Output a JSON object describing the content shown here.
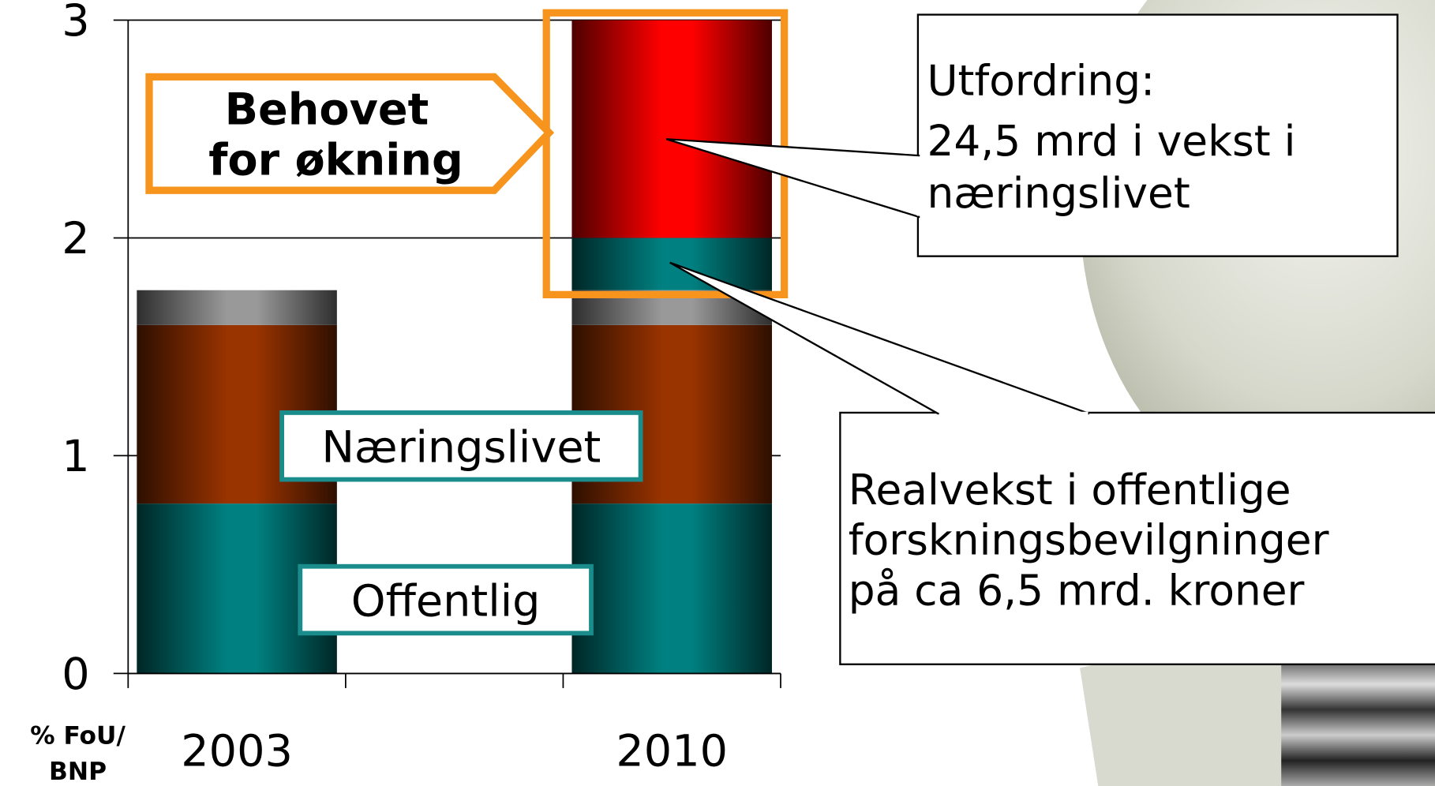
{
  "chart_data": {
    "type": "stacked_bar",
    "categories": [
      "2003",
      null,
      "2010"
    ],
    "xlabel": [
      "% FoU/",
      "BNP"
    ],
    "ylim": [
      0,
      3
    ],
    "yticks": [
      0,
      1,
      2,
      3
    ],
    "grid": true,
    "series": [
      {
        "name": "Offentlig",
        "color": "#008080",
        "values": [
          0.78,
          null,
          0.78
        ]
      },
      {
        "name": "Næringslivet",
        "color": "#993300",
        "values": [
          0.82,
          null,
          0.82
        ]
      },
      {
        "color": "#999999",
        "values": [
          0.16,
          null,
          0.16
        ]
      },
      {
        "color": "#008080",
        "values": [
          null,
          null,
          0.24
        ]
      },
      {
        "color": "#ff0000",
        "values": [
          null,
          null,
          1.0
        ]
      }
    ],
    "annotations": [
      {
        "lines": [
          "Behovet",
          "for økning"
        ]
      },
      {
        "lines": [
          "Utfordring:",
          "24,5 mrd i vekst i",
          "næringslivet"
        ]
      },
      {
        "lines": [
          "Realvekst i offentlige",
          "forskningsbevilgninger",
          "på ca 6,5 mrd. kroner"
        ]
      }
    ]
  }
}
